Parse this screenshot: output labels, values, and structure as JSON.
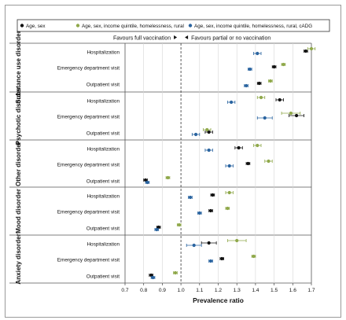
{
  "chart_data": {
    "type": "scatter",
    "xlabel": "Prevalence ratio",
    "xlim": [
      0.7,
      1.7
    ],
    "xticks": [
      0.7,
      0.8,
      0.9,
      1.0,
      1.1,
      1.2,
      1.3,
      1.4,
      1.5,
      1.6,
      1.7
    ],
    "xtick_labels": [
      "0.7",
      "0.8",
      "0.9",
      "1.0",
      "1.1",
      "1.2",
      "1.3",
      "1.4",
      "1.5",
      "1.6",
      "1.7"
    ],
    "reference_line": 1.0,
    "grid": true,
    "legend_position": "top",
    "annotations": {
      "left": "Favours full vaccination",
      "right": "Favours partial or no vaccination"
    },
    "series": [
      {
        "name": "Age, sex",
        "color": "#111111",
        "marker": "circle"
      },
      {
        "name": "Age, sex, income quintile, homelessness, rural",
        "color": "#8fa84a",
        "marker": "circle"
      },
      {
        "name": "Age, sex, income quintile, homelessness, rural, cADG",
        "color": "#2a64a0",
        "marker": "circle"
      }
    ],
    "groups": [
      {
        "label": "Substance use disorder",
        "rows": [
          {
            "label": "Hospitalization",
            "points": [
              [
                1.67,
                1.66,
                1.68
              ],
              [
                1.7,
                1.68,
                1.72
              ],
              [
                1.41,
                1.39,
                1.43
              ]
            ]
          },
          {
            "label": "Emergency department visit",
            "points": [
              [
                1.5,
                1.49,
                1.51
              ],
              [
                1.55,
                1.54,
                1.56
              ],
              [
                1.37,
                1.36,
                1.38
              ]
            ]
          },
          {
            "label": "Outpatient visit",
            "points": [
              [
                1.42,
                1.41,
                1.43
              ],
              [
                1.48,
                1.47,
                1.49
              ],
              [
                1.35,
                1.34,
                1.36
              ]
            ]
          }
        ]
      },
      {
        "label": "Psychotic disorder",
        "rows": [
          {
            "label": "Hospitalization",
            "points": [
              [
                1.53,
                1.51,
                1.55
              ],
              [
                1.43,
                1.41,
                1.45
              ],
              [
                1.27,
                1.25,
                1.29
              ]
            ]
          },
          {
            "label": "Emergency department visit",
            "points": [
              [
                1.62,
                1.58,
                1.66
              ],
              [
                1.59,
                1.54,
                1.64
              ],
              [
                1.45,
                1.41,
                1.49
              ]
            ]
          },
          {
            "label": "Outpatient visit",
            "points": [
              [
                1.15,
                1.13,
                1.17
              ],
              [
                1.14,
                1.12,
                1.16
              ],
              [
                1.08,
                1.06,
                1.1
              ]
            ]
          }
        ]
      },
      {
        "label": "Other disorder",
        "rows": [
          {
            "label": "Hospitalization",
            "points": [
              [
                1.31,
                1.29,
                1.33
              ],
              [
                1.41,
                1.39,
                1.43
              ],
              [
                1.15,
                1.13,
                1.17
              ]
            ]
          },
          {
            "label": "Emergency department visit",
            "points": [
              [
                1.36,
                1.35,
                1.37
              ],
              [
                1.47,
                1.45,
                1.49
              ],
              [
                1.26,
                1.24,
                1.28
              ]
            ]
          },
          {
            "label": "Outpatient visit",
            "points": [
              [
                0.81,
                0.8,
                0.82
              ],
              [
                0.93,
                0.92,
                0.94
              ],
              [
                0.82,
                0.81,
                0.83
              ]
            ]
          }
        ]
      },
      {
        "label": "Mood disorder",
        "rows": [
          {
            "label": "Hospitalization",
            "points": [
              [
                1.17,
                1.16,
                1.18
              ],
              [
                1.26,
                1.24,
                1.28
              ],
              [
                1.05,
                1.04,
                1.06
              ]
            ]
          },
          {
            "label": "Emergency department visit",
            "points": [
              [
                1.16,
                1.15,
                1.17
              ],
              [
                1.25,
                1.24,
                1.26
              ],
              [
                1.1,
                1.09,
                1.11
              ]
            ]
          },
          {
            "label": "Outpatient visit",
            "points": [
              [
                0.88,
                0.87,
                0.89
              ],
              [
                0.99,
                0.98,
                1.0
              ],
              [
                0.87,
                0.86,
                0.88
              ]
            ]
          }
        ]
      },
      {
        "label": "Anxiety disorder",
        "rows": [
          {
            "label": "Hospitalization",
            "points": [
              [
                1.15,
                1.11,
                1.19
              ],
              [
                1.3,
                1.25,
                1.35
              ],
              [
                1.07,
                1.03,
                1.11
              ]
            ]
          },
          {
            "label": "Emergency department visit",
            "points": [
              [
                1.22,
                1.21,
                1.23
              ],
              [
                1.39,
                1.38,
                1.4
              ],
              [
                1.16,
                1.15,
                1.17
              ]
            ]
          },
          {
            "label": "Outpatient visit",
            "points": [
              [
                0.84,
                0.83,
                0.85
              ],
              [
                0.97,
                0.96,
                0.98
              ],
              [
                0.85,
                0.84,
                0.86
              ]
            ]
          }
        ]
      }
    ]
  }
}
